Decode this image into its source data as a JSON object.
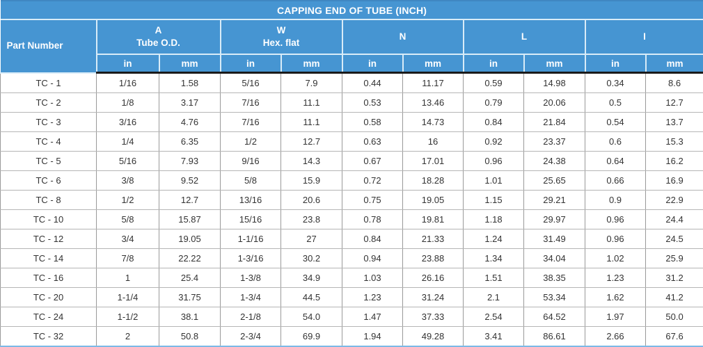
{
  "title": "CAPPING END OF TUBE (INCH)",
  "colors": {
    "header_bg": "#4695d2",
    "header_text": "#ffffff",
    "header_divider": "#d9ecf8",
    "header_bottom_line": "#1b1b1b",
    "data_text": "#333333",
    "grid_vertical": "#999999",
    "grid_horizontal": "#b5b5b5",
    "table_bottom_line": "#7cb9e6"
  },
  "table": {
    "part_number_header": "Part Number",
    "unit_labels": [
      "in",
      "mm"
    ],
    "groups": [
      {
        "label": "A",
        "sublabel": "Tube O.D."
      },
      {
        "label": "W",
        "sublabel": "Hex. flat"
      },
      {
        "label": "N",
        "sublabel": ""
      },
      {
        "label": "L",
        "sublabel": ""
      },
      {
        "label": "I",
        "sublabel": ""
      }
    ],
    "rows": [
      {
        "part": "TC - 1",
        "values": [
          "1/16",
          "1.58",
          "5/16",
          "7.9",
          "0.44",
          "11.17",
          "0.59",
          "14.98",
          "0.34",
          "8.6"
        ]
      },
      {
        "part": "TC - 2",
        "values": [
          "1/8",
          "3.17",
          "7/16",
          "11.1",
          "0.53",
          "13.46",
          "0.79",
          "20.06",
          "0.5",
          "12.7"
        ]
      },
      {
        "part": "TC - 3",
        "values": [
          "3/16",
          "4.76",
          "7/16",
          "11.1",
          "0.58",
          "14.73",
          "0.84",
          "21.84",
          "0.54",
          "13.7"
        ]
      },
      {
        "part": "TC - 4",
        "values": [
          "1/4",
          "6.35",
          "1/2",
          "12.7",
          "0.63",
          "16",
          "0.92",
          "23.37",
          "0.6",
          "15.3"
        ]
      },
      {
        "part": "TC - 5",
        "values": [
          "5/16",
          "7.93",
          "9/16",
          "14.3",
          "0.67",
          "17.01",
          "0.96",
          "24.38",
          "0.64",
          "16.2"
        ]
      },
      {
        "part": "TC - 6",
        "values": [
          "3/8",
          "9.52",
          "5/8",
          "15.9",
          "0.72",
          "18.28",
          "1.01",
          "25.65",
          "0.66",
          "16.9"
        ]
      },
      {
        "part": "TC - 8",
        "values": [
          "1/2",
          "12.7",
          "13/16",
          "20.6",
          "0.75",
          "19.05",
          "1.15",
          "29.21",
          "0.9",
          "22.9"
        ]
      },
      {
        "part": "TC - 10",
        "values": [
          "5/8",
          "15.87",
          "15/16",
          "23.8",
          "0.78",
          "19.81",
          "1.18",
          "29.97",
          "0.96",
          "24.4"
        ]
      },
      {
        "part": "TC - 12",
        "values": [
          "3/4",
          "19.05",
          "1-1/16",
          "27",
          "0.84",
          "21.33",
          "1.24",
          "31.49",
          "0.96",
          "24.5"
        ]
      },
      {
        "part": "TC - 14",
        "values": [
          "7/8",
          "22.22",
          "1-3/16",
          "30.2",
          "0.94",
          "23.88",
          "1.34",
          "34.04",
          "1.02",
          "25.9"
        ]
      },
      {
        "part": "TC - 16",
        "values": [
          "1",
          "25.4",
          "1-3/8",
          "34.9",
          "1.03",
          "26.16",
          "1.51",
          "38.35",
          "1.23",
          "31.2"
        ]
      },
      {
        "part": "TC - 20",
        "values": [
          "1-1/4",
          "31.75",
          "1-3/4",
          "44.5",
          "1.23",
          "31.24",
          "2.1",
          "53.34",
          "1.62",
          "41.2"
        ]
      },
      {
        "part": "TC - 24",
        "values": [
          "1-1/2",
          "38.1",
          "2-1/8",
          "54.0",
          "1.47",
          "37.33",
          "2.54",
          "64.52",
          "1.97",
          "50.0"
        ]
      },
      {
        "part": "TC - 32",
        "values": [
          "2",
          "50.8",
          "2-3/4",
          "69.9",
          "1.94",
          "49.28",
          "3.41",
          "86.61",
          "2.66",
          "67.6"
        ]
      }
    ]
  }
}
